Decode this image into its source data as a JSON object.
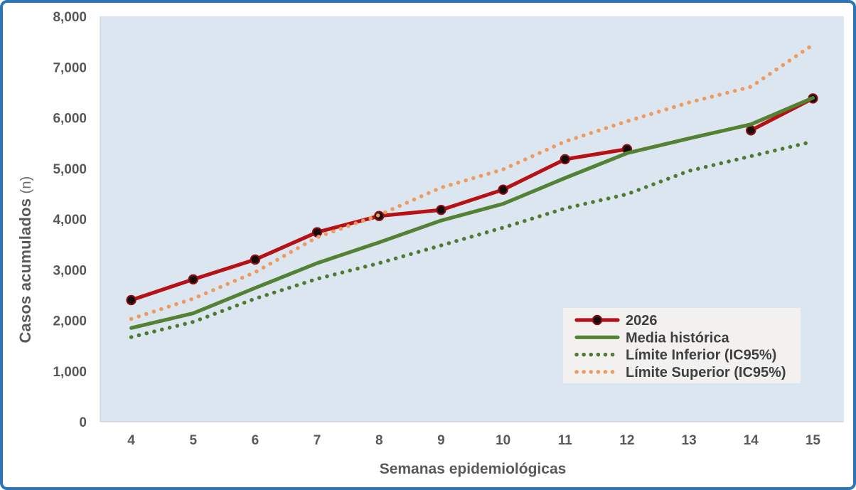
{
  "frame": {
    "border_color": "#2E75B6",
    "background": "#FFFFFF"
  },
  "axes": {
    "y_title_bold": "Casos acumulados",
    "y_title_unit": "(n)",
    "x_title": "Semanas epidemiológicas",
    "text_color": "#595959"
  },
  "chart_data": {
    "type": "line",
    "title": "",
    "xlabel": "Semanas epidemiológicas",
    "ylabel": "Casos acumulados (n)",
    "x": [
      4,
      5,
      6,
      7,
      8,
      9,
      10,
      11,
      12,
      13,
      14,
      15
    ],
    "ylim": [
      0,
      8000
    ],
    "ytick_step": 1000,
    "ytick_labels": [
      "0",
      "1,000",
      "2,000",
      "3,000",
      "4,000",
      "5,000",
      "6,000",
      "7,000",
      "8,000"
    ],
    "grid": false,
    "plot_background": "#DCE6F1",
    "legend_position": "center-right",
    "legend_background": "#F2F1F0",
    "legend_text_color": "#3F3F3F",
    "series": [
      {
        "name": "2026",
        "color": "#B61215",
        "style": "solid",
        "marker": true,
        "marker_fill": "#140B0B",
        "marker_stroke": "#8E1012",
        "values": [
          2400,
          2810,
          3200,
          3740,
          4060,
          4180,
          4580,
          5180,
          5380,
          null,
          5750,
          6380
        ]
      },
      {
        "name": "Media histórica",
        "color": "#548235",
        "style": "solid",
        "marker": false,
        "values": [
          1850,
          2140,
          2640,
          3130,
          3540,
          3970,
          4300,
          4810,
          5300,
          5590,
          5870,
          6390
        ]
      },
      {
        "name": "Límite Inferior (IC95%)",
        "color": "#4E7A31",
        "style": "dotted",
        "marker": false,
        "values": [
          1670,
          1970,
          2430,
          2820,
          3130,
          3480,
          3830,
          4210,
          4490,
          4950,
          5240,
          5530
        ]
      },
      {
        "name": "Límite Superior (IC95%)",
        "color": "#EF9A5F",
        "style": "dotted",
        "marker": false,
        "values": [
          2030,
          2430,
          2950,
          3640,
          4080,
          4620,
          4980,
          5530,
          5930,
          6300,
          6610,
          7440
        ]
      }
    ]
  }
}
